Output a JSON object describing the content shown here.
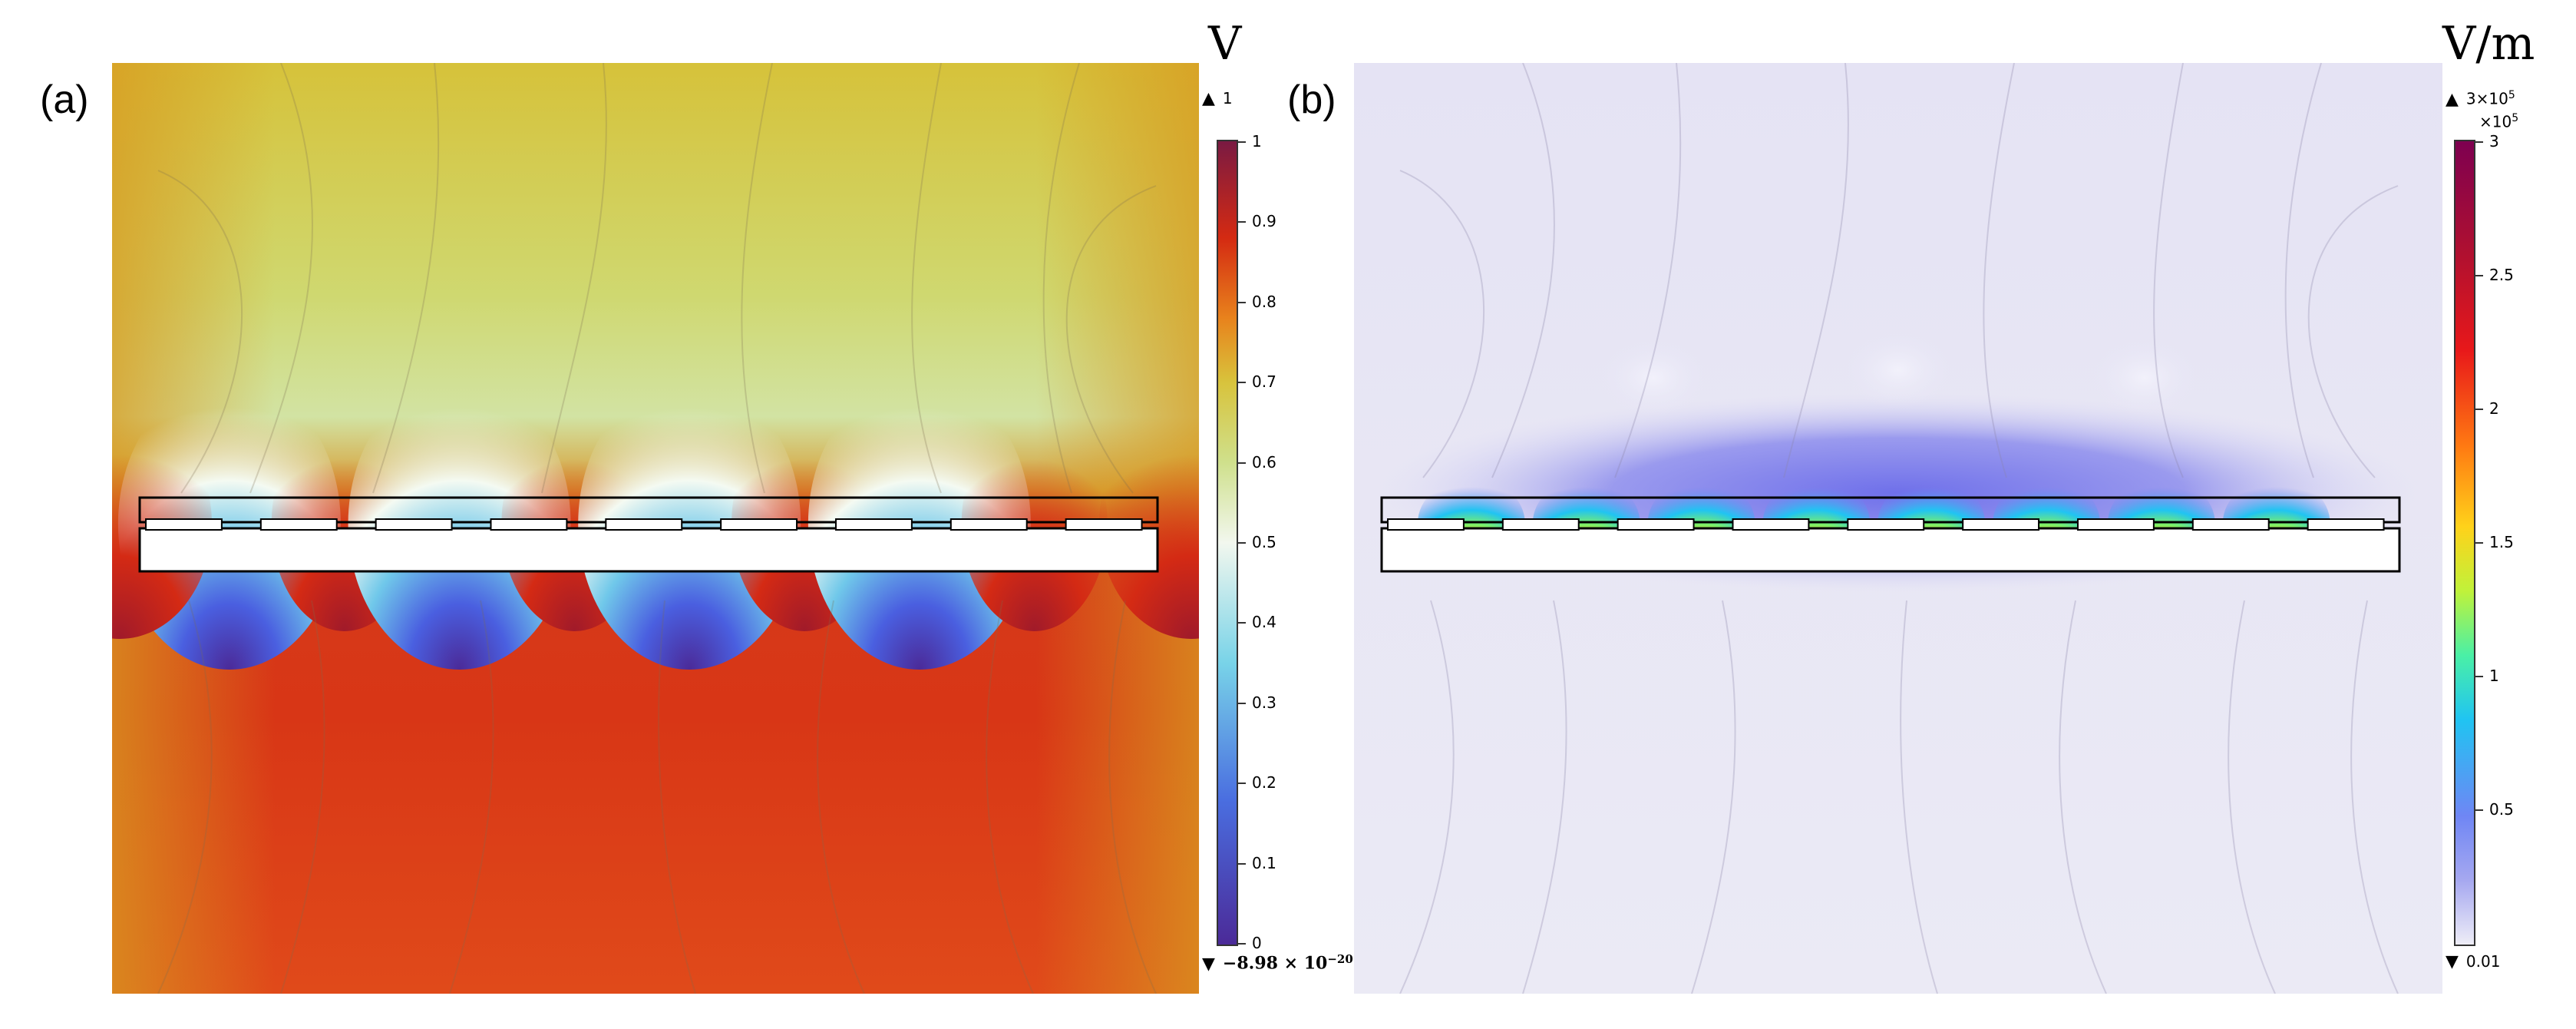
{
  "panels": {
    "a": {
      "label": "(a)",
      "unit": "V",
      "max_marker": "1",
      "min_marker": "−8.98 × 10",
      "min_marker_exp": "−20",
      "colorbar_ticks": [
        "1",
        "0.9",
        "0.8",
        "0.7",
        "0.6",
        "0.5",
        "0.4",
        "0.3",
        "0.2",
        "0.1",
        "0"
      ],
      "field": "electric potential",
      "colormap_colors": [
        "#4b2a98",
        "#4a6ee0",
        "#78d3e8",
        "#f2f7ee",
        "#cfe08c",
        "#d8c33c",
        "#e8821c",
        "#d42a12",
        "#7a1a42"
      ]
    },
    "b": {
      "label": "(b)",
      "unit": "V/m",
      "max_marker": "3×10",
      "max_marker_exp": "5",
      "colorbar_multiplier": "×10",
      "colorbar_multiplier_exp": "5",
      "min_marker": "0.01",
      "colorbar_ticks": [
        "3",
        "2.5",
        "2",
        "1.5",
        "1",
        "0.5"
      ],
      "field": "electric field norm",
      "colormap_colors": [
        "#eeedf7",
        "#6f86f4",
        "#20c4f2",
        "#c0f23a",
        "#ffd21a",
        "#ff7a12",
        "#e8181a",
        "#7e0050"
      ]
    }
  },
  "device": {
    "electrode_count": 9,
    "hot_spot_count": 8
  }
}
